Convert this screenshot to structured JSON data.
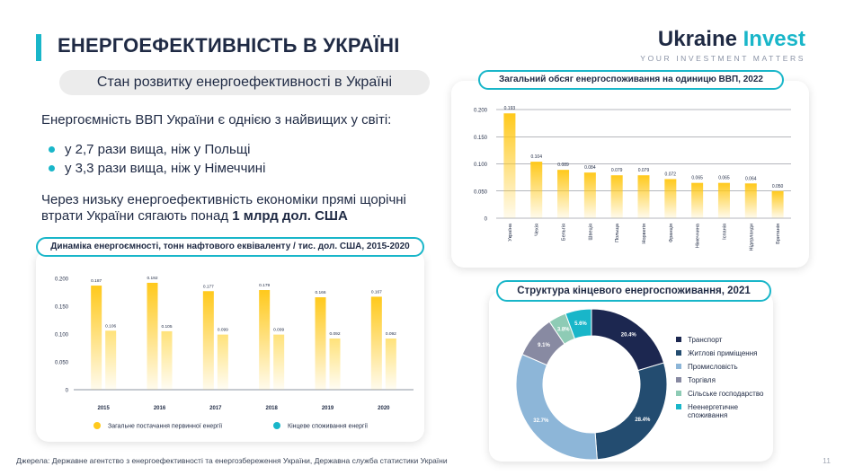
{
  "header": {
    "title": "ЕНЕРГОЕФЕКТИВНІСТЬ В УКРАЇНІ",
    "subtitle": "Стан розвитку енергоефективності в Україні"
  },
  "logo": {
    "part1": "Ukraine",
    "part2": "Invest",
    "tagline": "YOUR INVESTMENT MATTERS"
  },
  "text": {
    "intro": "Енергоємність ВВП України є однією з найвищих у світі:",
    "bullets": [
      "у 2,7 рази вища, ніж у Польщі",
      "у 3,3 рази вища, ніж у Німеччині"
    ],
    "losses_prefix": "Через низьку енергоефективність економіки прямі щорічні втрати України сягають понад ",
    "losses_bold": "1 млрд дол. США"
  },
  "colors": {
    "accent": "#19b6c9",
    "yellow": "#ffc91c",
    "navy": "#1f2a44"
  },
  "footer": {
    "source": "Джерела: Державне агентство з енергоефективності та енергозбереження України, Державна служба статистики України",
    "page": "11"
  },
  "chart_data": [
    {
      "type": "bar",
      "title": "Динаміка енергоємності, тонн нафтового еквіваленту / тис. дол. США, 2015-2020",
      "categories": [
        "2015",
        "2016",
        "2017",
        "2018",
        "2019",
        "2020"
      ],
      "series": [
        {
          "name": "Загальне постачання первинної енергії",
          "values": [
            0.187,
            0.192,
            0.177,
            0.179,
            0.166,
            0.167
          ],
          "labels": [
            "0.187",
            "0.192",
            "0.177",
            "0.179",
            "0.166",
            "0.167"
          ]
        },
        {
          "name": "Кінцеве споживання енергії",
          "values": [
            0.106,
            0.105,
            0.099,
            0.099,
            0.092,
            0.092
          ],
          "labels": [
            "0.106",
            "0.105",
            "0.099",
            "0.099",
            "0.092",
            "0.092"
          ]
        }
      ],
      "yticks": [
        "0.200",
        "0.150",
        "0.100",
        "0.050",
        "0"
      ],
      "ylim": [
        0,
        0.2
      ]
    },
    {
      "type": "bar",
      "title": "Загальний обсяг енергоспоживання на одиницю ВВП, 2022",
      "categories": [
        "Україна",
        "Чехія",
        "Бельгія",
        "Швеція",
        "Польща",
        "Норвегія",
        "Франція",
        "Німеччина",
        "Іспанія",
        "Нідерланди",
        "Британія"
      ],
      "values": [
        0.193,
        0.104,
        0.089,
        0.084,
        0.079,
        0.079,
        0.072,
        0.065,
        0.065,
        0.064,
        0.05
      ],
      "labels": [
        "0.193",
        "0.104",
        "0.089",
        "0.084",
        "0.079",
        "0.079",
        "0.072",
        "0.065",
        "0.065",
        "0.064",
        "0.050"
      ],
      "yticks": [
        "0.200",
        "0.150",
        "0.100",
        "0.050",
        "0"
      ],
      "ylim": [
        0,
        0.2
      ]
    },
    {
      "type": "pie",
      "title": "Структура кінцевого енергоспоживання, 2021",
      "slices": [
        {
          "name": "Транспорт",
          "value": 20.4,
          "label": "20.4%",
          "color": "#1c2750"
        },
        {
          "name": "Житлові приміщення",
          "value": 28.4,
          "label": "28.4%",
          "color": "#234c70"
        },
        {
          "name": "Промисловість",
          "value": 32.7,
          "label": "32.7%",
          "color": "#8db6d8"
        },
        {
          "name": "Торгівля",
          "value": 9.1,
          "label": "9.1%",
          "color": "#888aa2"
        },
        {
          "name": "Сільське господарство",
          "value": 3.8,
          "label": "3.8%",
          "color": "#8ecbb5"
        },
        {
          "name": "Неенергетичне споживання",
          "value": 5.6,
          "label": "5.6%",
          "color": "#19b6c9"
        }
      ]
    }
  ]
}
